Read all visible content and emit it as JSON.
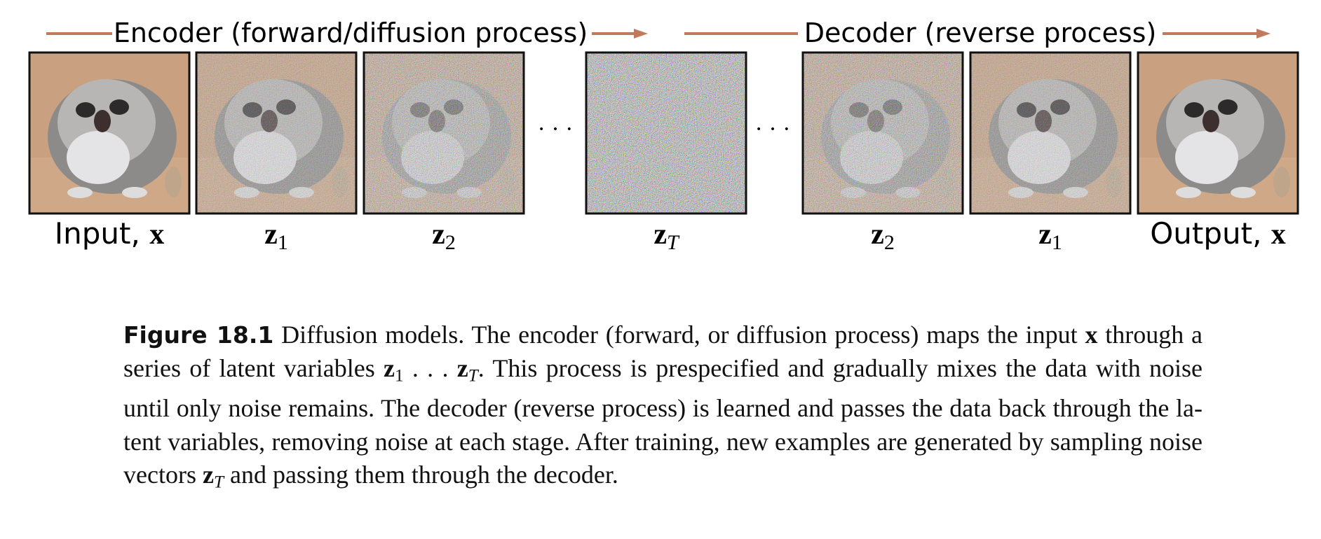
{
  "header": {
    "encoder": "Encoder (forward/diffusion process)",
    "decoder": "Decoder (reverse process)"
  },
  "panels": [
    {
      "label": "Input, ",
      "var": "x"
    },
    {
      "var": "z",
      "sub": "1"
    },
    {
      "var": "z",
      "sub": "2"
    },
    {
      "var": "z",
      "sub": "T"
    },
    {
      "var": "z",
      "sub": "2"
    },
    {
      "var": "z",
      "sub": "1"
    },
    {
      "label": "Output, ",
      "var": "x"
    }
  ],
  "ellipses": [
    "· · ·",
    "· · ·"
  ],
  "caption": {
    "label": "Figure 18.1",
    "parts": [
      " Diffusion models. The encoder (forward, or diffusion process) maps the input ",
      {
        "var": "x"
      },
      " through a series of latent variables ",
      {
        "var": "z",
        "sub": "1"
      },
      " . . . ",
      {
        "var": "z",
        "sub": "T"
      },
      ". This process is pre­specified and gradually mixes the data with noise until only noise remains. The decoder (reverse process) is learned and passes the data back through the la­tent variables, removing noise at each stage. After training, new examples are generated by sampling noise vectors ",
      {
        "var": "z",
        "sub": "T"
      },
      " and passing them through the decoder."
    ]
  }
}
